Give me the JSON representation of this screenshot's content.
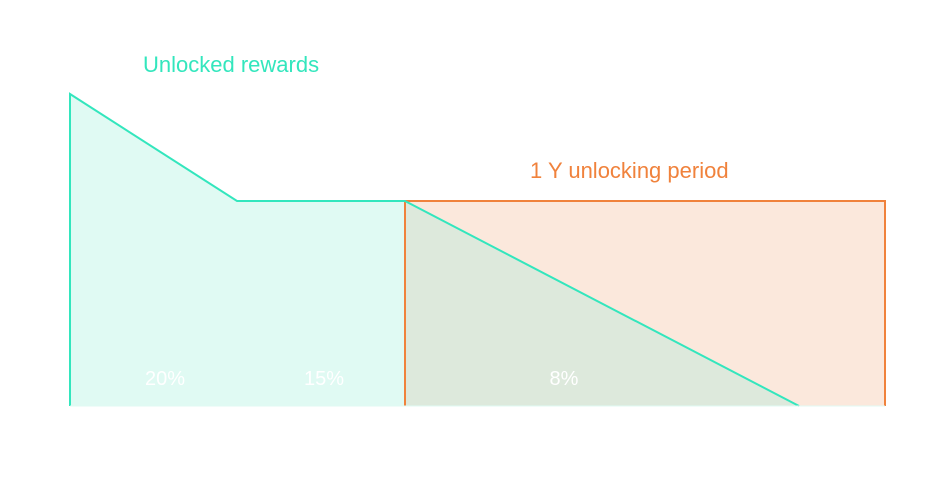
{
  "labels": {
    "unlocked_rewards": "Unlocked rewards",
    "unlocking_period": "1 Y unlocking period"
  },
  "percentages": [
    "20%",
    "15%",
    "8%"
  ],
  "colors": {
    "teal": "#33e6bd",
    "teal_fill": "#e0faf3",
    "orange": "#f0823c",
    "orange_fill": "#fbe8dc",
    "overlap_fill": "#dde9dc"
  }
}
